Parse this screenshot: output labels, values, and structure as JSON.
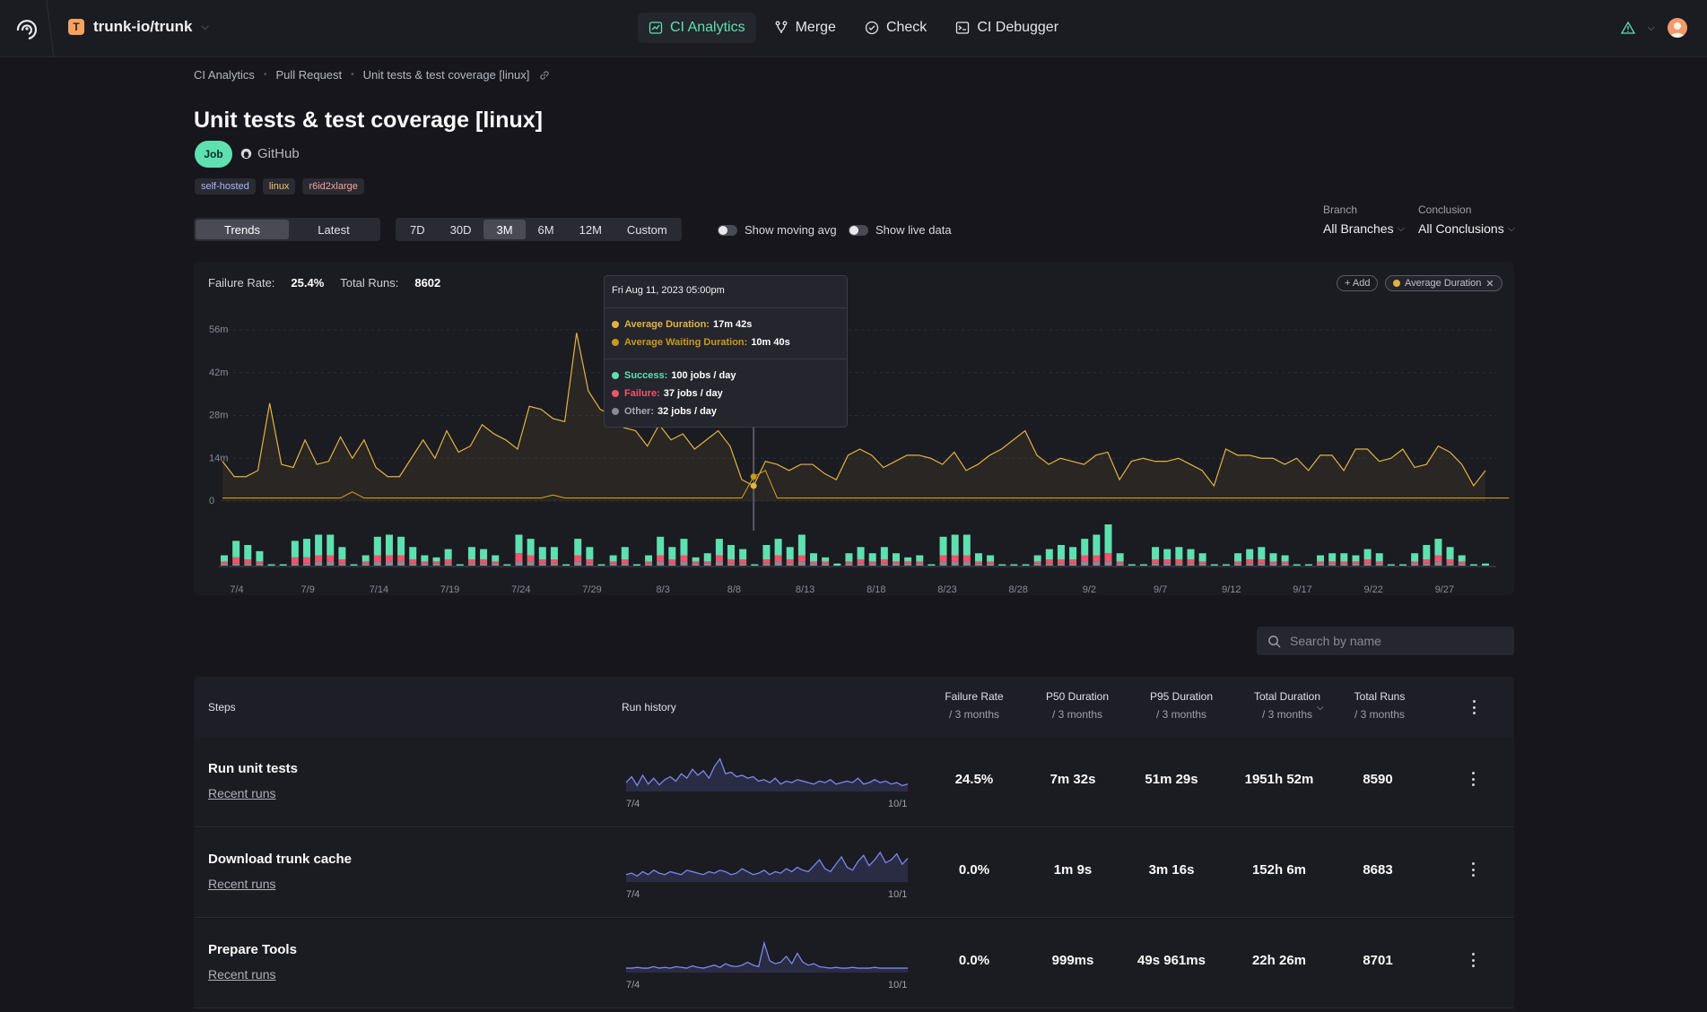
{
  "topbar": {
    "org_initial": "T",
    "org_name": "trunk-io/trunk",
    "nav": [
      {
        "label": "CI Analytics",
        "icon": "chart-icon",
        "active": true
      },
      {
        "label": "Merge",
        "icon": "merge-icon",
        "active": false
      },
      {
        "label": "Check",
        "icon": "check-circle-icon",
        "active": false
      },
      {
        "label": "CI Debugger",
        "icon": "terminal-icon",
        "active": false
      }
    ]
  },
  "breadcrumb": [
    "CI Analytics",
    "Pull Request",
    "Unit tests & test coverage [linux]"
  ],
  "page": {
    "title": "Unit tests & test coverage [linux]",
    "badge": "Job",
    "source": "GitHub",
    "tags": [
      "self-hosted",
      "linux",
      "r6id2xlarge"
    ]
  },
  "controls": {
    "view_tabs": [
      "Trends",
      "Latest"
    ],
    "view_active": "Trends",
    "ranges": [
      "7D",
      "30D",
      "3M",
      "6M",
      "12M",
      "Custom"
    ],
    "range_active": "3M",
    "toggles": [
      "Show moving avg",
      "Show live data"
    ],
    "branch_label": "Branch",
    "branch_value": "All Branches",
    "conclusion_label": "Conclusion",
    "conclusion_value": "All Conclusions"
  },
  "summary": {
    "failure_rate_label": "Failure Rate:",
    "failure_rate": "25.4%",
    "total_runs_label": "Total Runs:",
    "total_runs": "8602",
    "add_chip": "+ Add",
    "metric_chip": "Average Duration"
  },
  "tooltip": {
    "date": "Fri Aug 11, 2023 05:00pm",
    "avg_duration_label": "Average Duration:",
    "avg_duration": "17m 42s",
    "avg_wait_label": "Average Waiting Duration:",
    "avg_wait": "10m 40s",
    "success_label": "Success:",
    "success": "100 jobs / day",
    "failure_label": "Failure:",
    "failure": "37 jobs / day",
    "other_label": "Other:",
    "other": "32 jobs / day"
  },
  "colors": {
    "duration": "#e3b341",
    "waiting": "#c99a1c",
    "success": "#5ee0b0",
    "failure": "#f0556b",
    "other": "#8a8a96",
    "accent": "#5ee0b0"
  },
  "chart_data": {
    "type": "line",
    "y_ticks": [
      "56m",
      "42m",
      "28m",
      "14m",
      "0"
    ],
    "ylim": [
      0,
      56
    ],
    "x_ticks": [
      "7/4",
      "7/9",
      "7/14",
      "7/19",
      "7/24",
      "7/29",
      "8/3",
      "8/8",
      "8/13",
      "8/18",
      "8/23",
      "8/28",
      "9/2",
      "9/7",
      "9/12",
      "9/17",
      "9/22",
      "9/27"
    ],
    "series": [
      {
        "name": "Average Duration",
        "values": [
          13,
          8,
          8,
          10,
          32,
          12,
          11,
          20,
          12,
          13,
          21,
          14,
          20,
          11,
          8,
          8,
          14,
          20,
          14,
          23,
          16,
          18,
          25,
          22,
          20,
          17,
          31,
          30,
          27,
          26,
          55,
          36,
          30,
          28,
          24,
          23,
          18,
          25,
          20,
          22,
          17,
          20,
          23,
          18,
          7,
          5,
          13,
          12,
          10,
          12,
          12,
          9,
          7,
          15,
          17,
          15,
          11,
          13,
          15,
          15,
          14,
          12,
          16,
          10,
          12,
          15,
          17,
          20,
          23,
          15,
          12,
          14,
          13,
          12,
          15,
          16,
          7,
          13,
          14,
          13,
          13,
          14,
          12,
          10,
          5,
          17,
          15,
          15,
          14,
          14,
          12,
          14,
          10,
          15,
          15,
          10,
          17,
          17,
          13,
          14,
          17,
          11,
          12,
          18,
          16,
          12,
          5,
          10
        ]
      },
      {
        "name": "Average Waiting Duration",
        "values": [
          1,
          1,
          1,
          1,
          1,
          1,
          1,
          1,
          1,
          1,
          1,
          3,
          1,
          1,
          1,
          1,
          1,
          1,
          1,
          1,
          1,
          1,
          1,
          1,
          1,
          1,
          1,
          1,
          2,
          1,
          1,
          1,
          1,
          1,
          1,
          1,
          1,
          1,
          1,
          1,
          1,
          1,
          1,
          1,
          1,
          8,
          10,
          1,
          1,
          1,
          1,
          1,
          1,
          1,
          1,
          1,
          1,
          1,
          1,
          1,
          1,
          1,
          1,
          1,
          1,
          1,
          1,
          1,
          1,
          1,
          1,
          1,
          1,
          1,
          1,
          1,
          1,
          1,
          1,
          1,
          1,
          1,
          1,
          1,
          1,
          1,
          1,
          1,
          1,
          1,
          1,
          1,
          1,
          1,
          1,
          1,
          1,
          1,
          1,
          1,
          1,
          1,
          1,
          1,
          1,
          1,
          1,
          1,
          1,
          1
        ]
      },
      {
        "name": "Success",
        "values": [
          3,
          8,
          7,
          5,
          0,
          0,
          8,
          9,
          10,
          10,
          6,
          0,
          3,
          9,
          10,
          9,
          6,
          3,
          2,
          5,
          0,
          6,
          5,
          3,
          0,
          9,
          8,
          6,
          6,
          0,
          8,
          6,
          0,
          3,
          6,
          0,
          3,
          9,
          6,
          8,
          2,
          4,
          8,
          7,
          5,
          0,
          7,
          8,
          6,
          10,
          4,
          2,
          1,
          4,
          6,
          4,
          6,
          4,
          2,
          3,
          0,
          9,
          10,
          10,
          4,
          3,
          0,
          0,
          0,
          3,
          5,
          7,
          6,
          8,
          10,
          14,
          4,
          0,
          0,
          6,
          5,
          6,
          5,
          4,
          0,
          0,
          4,
          5,
          6,
          4,
          3,
          0,
          0,
          3,
          4,
          4,
          3,
          5,
          4,
          0,
          0,
          4,
          7,
          8,
          6,
          3,
          0,
          1
        ]
      },
      {
        "name": "Failure",
        "values": [
          1,
          3,
          2,
          1,
          0,
          0,
          3,
          3,
          3,
          3,
          2,
          0,
          1,
          3,
          3,
          3,
          2,
          1,
          1,
          2,
          0,
          2,
          2,
          1,
          0,
          4,
          3,
          2,
          2,
          0,
          3,
          2,
          0,
          1,
          2,
          0,
          1,
          3,
          2,
          3,
          1,
          1,
          3,
          2,
          2,
          0,
          2,
          3,
          2,
          3,
          1,
          1,
          0,
          1,
          2,
          1,
          2,
          1,
          1,
          1,
          0,
          3,
          3,
          3,
          1,
          1,
          0,
          0,
          0,
          1,
          2,
          2,
          2,
          3,
          3,
          4,
          1,
          0,
          0,
          2,
          2,
          2,
          2,
          1,
          0,
          0,
          1,
          2,
          2,
          1,
          1,
          0,
          0,
          1,
          1,
          1,
          1,
          2,
          1,
          0,
          0,
          1,
          2,
          3,
          2,
          1,
          0,
          0
        ]
      },
      {
        "name": "Other",
        "values": [
          1,
          1,
          1,
          1,
          0,
          0,
          1,
          1,
          2,
          2,
          1,
          0,
          1,
          2,
          2,
          2,
          1,
          1,
          1,
          1,
          0,
          1,
          1,
          1,
          0,
          2,
          2,
          1,
          1,
          0,
          2,
          1,
          0,
          1,
          1,
          0,
          1,
          2,
          1,
          2,
          1,
          1,
          2,
          1,
          1,
          0,
          1,
          2,
          1,
          2,
          1,
          1,
          0,
          1,
          1,
          1,
          1,
          1,
          1,
          1,
          0,
          2,
          2,
          2,
          1,
          1,
          0,
          0,
          0,
          1,
          1,
          1,
          1,
          2,
          2,
          2,
          1,
          0,
          0,
          1,
          1,
          1,
          1,
          1,
          0,
          0,
          1,
          1,
          1,
          1,
          1,
          0,
          0,
          1,
          1,
          1,
          1,
          1,
          1,
          0,
          0,
          1,
          1,
          2,
          1,
          1,
          0,
          0
        ]
      }
    ]
  },
  "search": {
    "placeholder": "Search by name"
  },
  "table": {
    "headers": [
      {
        "label": "Steps",
        "sub": ""
      },
      {
        "label": "Run history",
        "sub": ""
      },
      {
        "label": "Failure Rate",
        "sub": "/ 3 months"
      },
      {
        "label": "P50 Duration",
        "sub": "/ 3 months"
      },
      {
        "label": "P95 Duration",
        "sub": "/ 3 months"
      },
      {
        "label": "Total Duration",
        "sub": "/ 3 months"
      },
      {
        "label": "Total Runs",
        "sub": "/ 3 months"
      }
    ],
    "rows": [
      {
        "name": "Run unit tests",
        "link": "Recent runs",
        "spark_start": "7/4",
        "spark_end": "10/1",
        "failure_rate": "24.5%",
        "p50": "7m 32s",
        "p95": "51m 29s",
        "total_duration": "1951h 52m",
        "total_runs": "8590"
      },
      {
        "name": "Download trunk cache",
        "link": "Recent runs",
        "spark_start": "7/4",
        "spark_end": "10/1",
        "failure_rate": "0.0%",
        "p50": "1m 9s",
        "p95": "3m 16s",
        "total_duration": "152h 6m",
        "total_runs": "8683"
      },
      {
        "name": "Prepare Tools",
        "link": "Recent runs",
        "spark_start": "7/4",
        "spark_end": "10/1",
        "failure_rate": "0.0%",
        "p50": "999ms",
        "p95": "49s 961ms",
        "total_duration": "22h 26m",
        "total_runs": "8701"
      }
    ]
  }
}
